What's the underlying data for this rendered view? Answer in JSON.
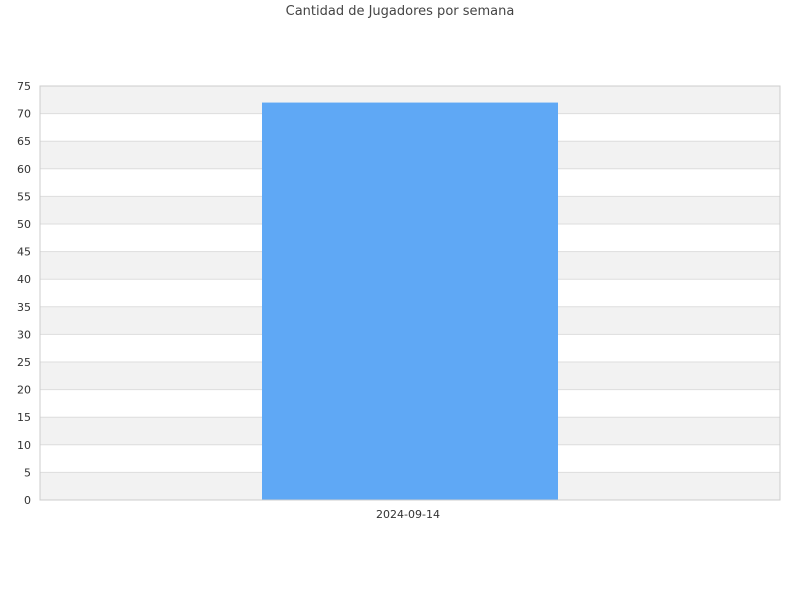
{
  "chart_data": {
    "type": "bar",
    "title": "Cantidad de Jugadores por semana",
    "xlabel": "",
    "ylabel": "",
    "categories": [
      "2024-09-14"
    ],
    "series": [
      {
        "values": [
          72
        ]
      }
    ],
    "ylim": [
      0,
      75
    ],
    "ytick_step": 5,
    "grid": true,
    "legend": "none"
  },
  "colors": {
    "bar": "#5fa8f5",
    "band_alt": "#f2f2f2",
    "band": "#ffffff",
    "grid": "#dddddd",
    "axis": "#cccccc"
  }
}
